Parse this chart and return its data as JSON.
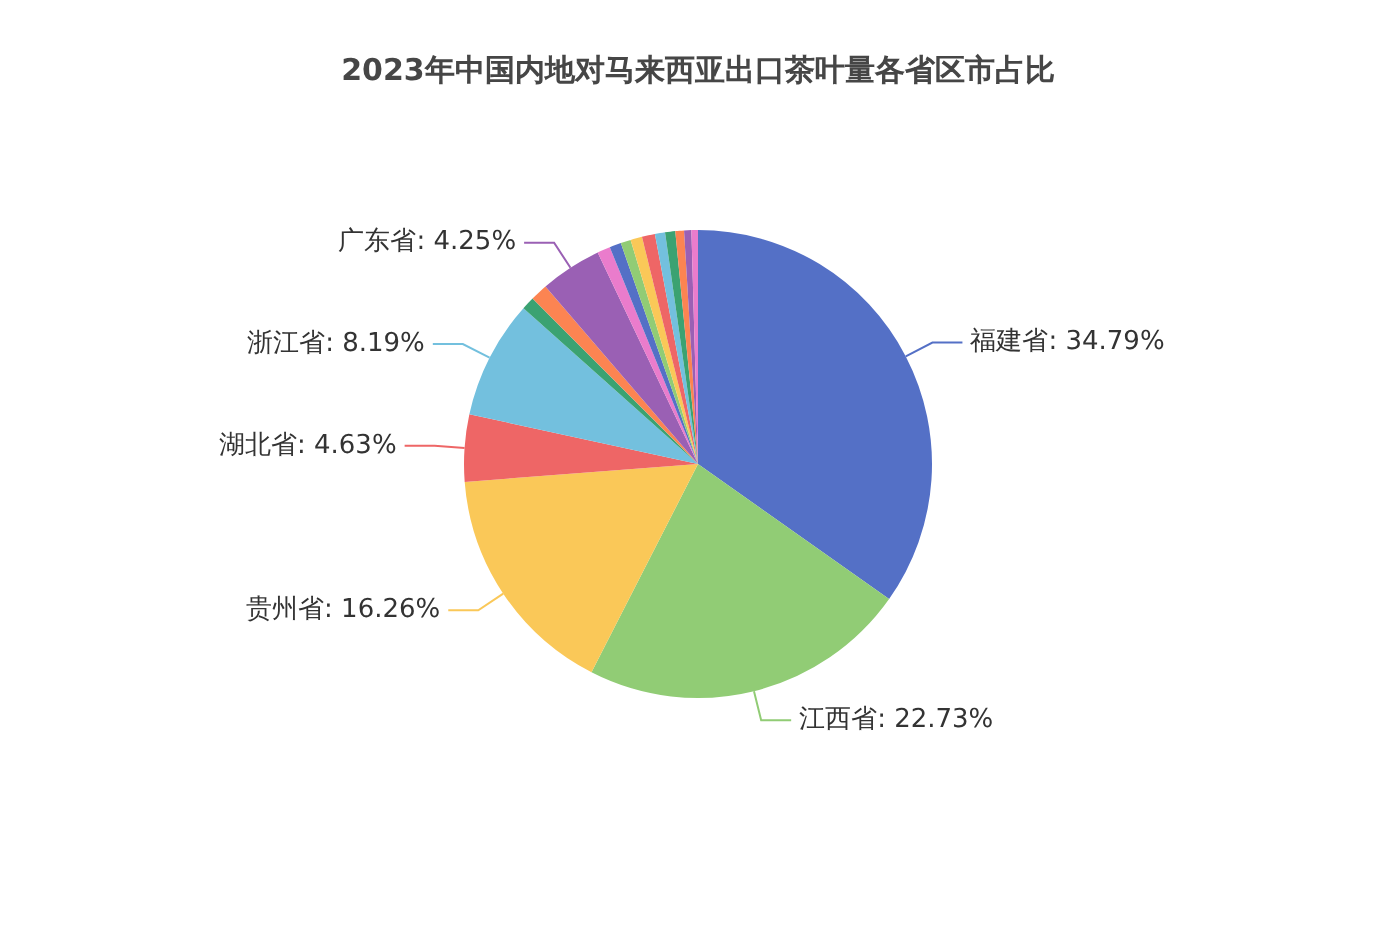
{
  "chart_data": {
    "type": "pie",
    "title": "2023年中国内地对马来西亚出口茶叶量各省区市占比",
    "categories": [
      "福建省",
      "江西省",
      "贵州省",
      "湖北省",
      "浙江省",
      null,
      null,
      "广东省",
      null,
      null,
      null,
      null,
      null,
      null,
      null,
      null,
      null,
      null
    ],
    "values": [
      34.79,
      22.73,
      16.26,
      4.63,
      8.19,
      0.9,
      1.2,
      4.25,
      0.9,
      0.8,
      0.7,
      0.8,
      0.9,
      0.7,
      0.7,
      0.6,
      0.5,
      0.45
    ],
    "value_labels": [
      "34.79%",
      "22.73%",
      "16.26%",
      "4.63%",
      "8.19%",
      null,
      null,
      "4.25%",
      null,
      null,
      null,
      null,
      null,
      null,
      null,
      null,
      null,
      null
    ],
    "colors": [
      "#5470c6",
      "#91cc75",
      "#fac858",
      "#ee6666",
      "#73c0de",
      "#3ba272",
      "#fc8452",
      "#9a60b4",
      "#ea7ccc",
      "#5470c6",
      "#91cc75",
      "#fac858",
      "#ee6666",
      "#73c0de",
      "#3ba272",
      "#fc8452",
      "#9a60b4",
      "#ea7ccc"
    ],
    "legend": false
  }
}
